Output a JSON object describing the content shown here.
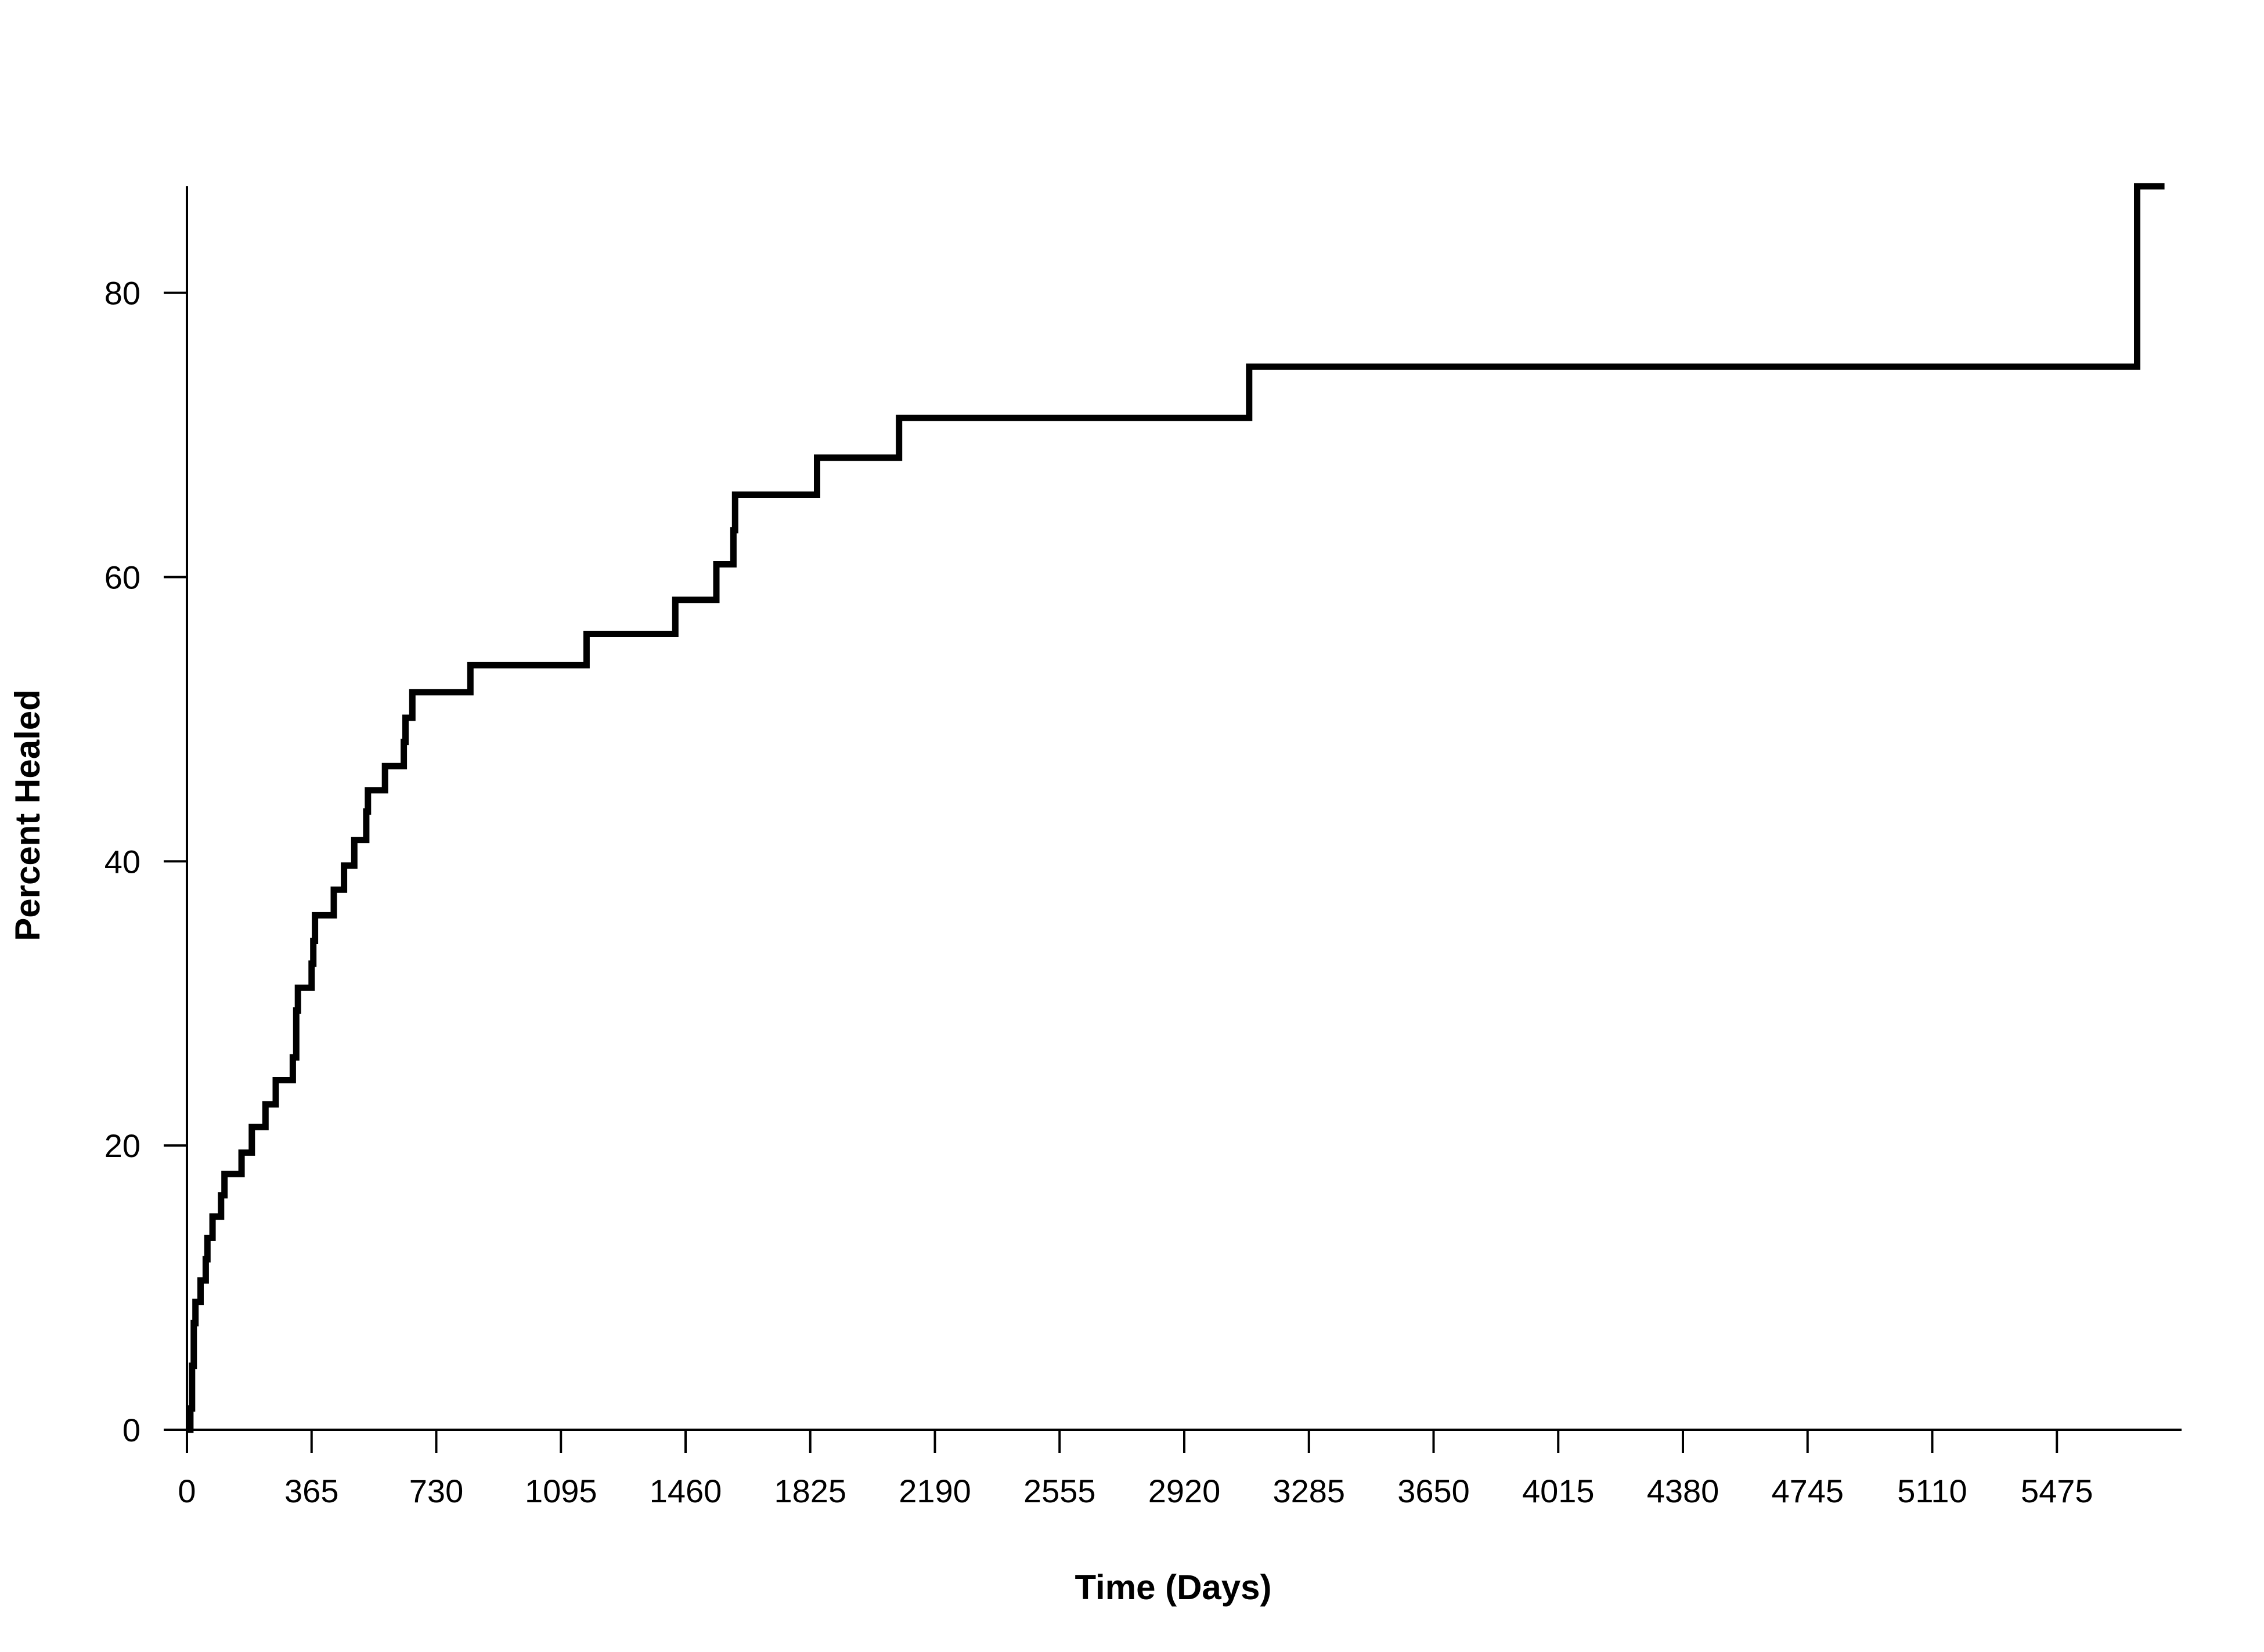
{
  "chart_data": {
    "type": "line",
    "step": true,
    "title": "",
    "xlabel": "Time (Days)",
    "ylabel": "Percent Healed",
    "xlim": [
      0,
      5840
    ],
    "ylim": [
      0,
      87.5
    ],
    "xticks": [
      0,
      365,
      730,
      1095,
      1460,
      1825,
      2190,
      2555,
      2920,
      3285,
      3650,
      4015,
      4380,
      4745,
      5110,
      5475
    ],
    "xtick_labels": [
      "0",
      "365",
      "730",
      "1095",
      "1460",
      "1825",
      "2190",
      "2555",
      "2920",
      "3285",
      "3650",
      "4015",
      "4380",
      "4745",
      "5110",
      "5475"
    ],
    "yticks": [
      0,
      20,
      40,
      60,
      80
    ],
    "ytick_labels": [
      "0",
      "20",
      "40",
      "60",
      "80"
    ],
    "grid": false,
    "line_color": "#000000",
    "series": [
      {
        "x": [
          0,
          10,
          15,
          20,
          25,
          30,
          40,
          55,
          60,
          65,
          75,
          100,
          110,
          160,
          190,
          230,
          260,
          310,
          320,
          325,
          335,
          365,
          370,
          375,
          390,
          430,
          460,
          490,
          525,
          530,
          580,
          635,
          640,
          660,
          830,
          1170,
          1430,
          1550,
          1600,
          1605,
          1845,
          2085,
          3110,
          5710,
          5790
        ],
        "y": [
          0,
          1.5,
          4.5,
          7.5,
          9.0,
          9.0,
          10.5,
          12.0,
          13.5,
          13.5,
          15.0,
          16.5,
          18.0,
          19.5,
          21.3,
          22.9,
          24.6,
          26.2,
          29.5,
          31.1,
          31.1,
          32.8,
          34.4,
          36.2,
          36.2,
          38.0,
          39.7,
          41.5,
          43.5,
          45.0,
          46.7,
          48.4,
          50.1,
          51.9,
          53.8,
          56.0,
          58.4,
          60.9,
          63.3,
          65.8,
          68.4,
          71.2,
          74.8,
          87.5,
          87.5
        ]
      }
    ]
  }
}
